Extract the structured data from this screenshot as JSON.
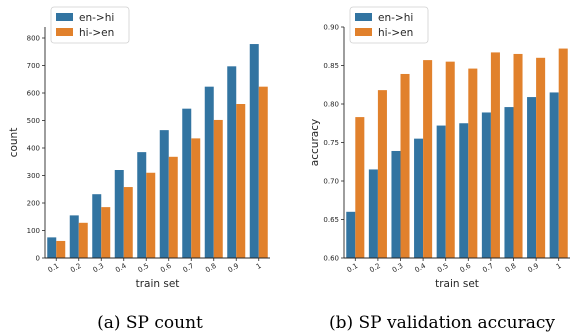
{
  "colors": {
    "series_a": "#3274a1",
    "series_b": "#e1812c",
    "axis": "#262626"
  },
  "chart_data": [
    {
      "type": "bar",
      "categories": [
        "0.1",
        "0.2",
        "0.3",
        "0.4",
        "0.5",
        "0.6",
        "0.7",
        "0.8",
        "0.9",
        "1"
      ],
      "series": [
        {
          "name": "en->hi",
          "values": [
            75,
            155,
            232,
            320,
            385,
            465,
            543,
            623,
            697,
            778
          ]
        },
        {
          "name": "hi->en",
          "values": [
            62,
            128,
            185,
            258,
            310,
            368,
            435,
            502,
            560,
            623
          ]
        }
      ],
      "xlabel": "train set",
      "ylabel": "count",
      "ylim": [
        0,
        840
      ],
      "yticks": [
        0,
        100,
        200,
        300,
        400,
        500,
        600,
        700,
        800
      ],
      "legend": "top-left",
      "grid": false,
      "caption": "(a)  SP count"
    },
    {
      "type": "bar",
      "categories": [
        "0.1",
        "0.2",
        "0.3",
        "0.4",
        "0.5",
        "0.6",
        "0.7",
        "0.8",
        "0.9",
        "1"
      ],
      "series": [
        {
          "name": "en->hi",
          "values": [
            0.66,
            0.715,
            0.739,
            0.755,
            0.772,
            0.775,
            0.789,
            0.796,
            0.809,
            0.815
          ]
        },
        {
          "name": "hi->en",
          "values": [
            0.783,
            0.818,
            0.839,
            0.857,
            0.855,
            0.846,
            0.867,
            0.865,
            0.86,
            0.872
          ]
        }
      ],
      "xlabel": "train set",
      "ylabel": "accuracy",
      "ylim": [
        0.6,
        0.9
      ],
      "yticks": [
        "0.60",
        "0.65",
        "0.70",
        "0.75",
        "0.80",
        "0.85",
        "0.90"
      ],
      "legend": "top-left",
      "grid": false,
      "caption": "(b)  SP validation accuracy"
    }
  ]
}
